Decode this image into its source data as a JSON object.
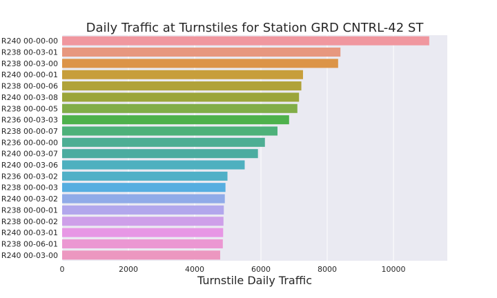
{
  "chart_data": {
    "type": "bar",
    "orientation": "horizontal",
    "title": "Daily Traffic at Turnstiles for Station GRD CNTRL-42 ST",
    "xlabel": "Turnstile Daily Traffic",
    "ylabel": "",
    "xlim": [
      0,
      11600
    ],
    "xticks": [
      0,
      2000,
      4000,
      6000,
      8000,
      10000
    ],
    "grid": true,
    "categories": [
      "R240 00-00-00",
      "R238 00-03-01",
      "R238 00-03-00",
      "R240 00-00-01",
      "R238 00-00-06",
      "R240 00-03-08",
      "R238 00-00-05",
      "R236 00-03-03",
      "R238 00-00-07",
      "R236 00-00-00",
      "R240 00-03-07",
      "R240 00-03-06",
      "R236 00-03-02",
      "R238 00-00-03",
      "R240 00-03-02",
      "R238 00-00-01",
      "R238 00-00-02",
      "R240 00-03-01",
      "R238 00-06-01",
      "R240 00-03-00"
    ],
    "values": [
      11080,
      8400,
      8330,
      7270,
      7220,
      7150,
      7100,
      6850,
      6500,
      6120,
      5910,
      5510,
      4990,
      4930,
      4910,
      4880,
      4870,
      4860,
      4850,
      4770
    ],
    "colors": [
      "#f0979f",
      "#e7977f",
      "#dc9448",
      "#c79e3b",
      "#b0a239",
      "#9ba53a",
      "#81ad48",
      "#4eb14c",
      "#4eb17a",
      "#4eae94",
      "#4baca0",
      "#4eb0bf",
      "#50b0c7",
      "#56aee0",
      "#90abe8",
      "#b2a7ec",
      "#ce9fe9",
      "#e797e5",
      "#eb97d2",
      "#ec97c0"
    ]
  }
}
